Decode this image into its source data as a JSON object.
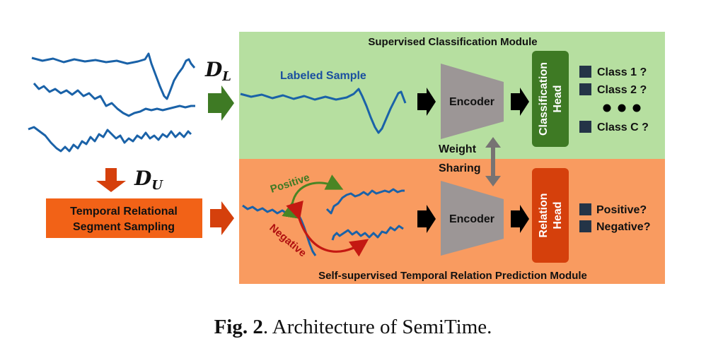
{
  "modules": {
    "supervised_title": "Supervised Classification Module",
    "selfsup_title": "Self-supervised Temporal Relation Prediction Module"
  },
  "labels": {
    "d_l": "D",
    "d_l_sub": "L",
    "d_u": "D",
    "d_u_sub": "U",
    "labeled_sample": "Labeled Sample",
    "sampling_line1": "Temporal Relational",
    "sampling_line2": "Segment Sampling",
    "encoder_top": "Encoder",
    "encoder_bottom": "Encoder",
    "weight": "Weight",
    "sharing": "Sharing",
    "classification_head_line1": "Classification",
    "classification_head_line2": "Head",
    "relation_head_line1": "Relation",
    "relation_head_line2": "Head",
    "positive_arrow": "Positive",
    "negative_arrow": "Negative"
  },
  "class_outputs": [
    "Class 1 ?",
    "Class 2 ?",
    "Class C ?"
  ],
  "relation_outputs": [
    "Positive?",
    "Negative?"
  ],
  "caption": {
    "prefix": "Fig. 2",
    "text": ". Architecture of SemiTime."
  },
  "colors": {
    "supervised_bg": "#b6dfa0",
    "selfsup_bg": "#f99b60",
    "classification_head": "#3e7a24",
    "relation_head": "#d5400c",
    "sampling_box": "#f26217",
    "encoder": "#9c9696",
    "signal": "#1a62a8",
    "positive": "#4a8524",
    "negative": "#c41812"
  }
}
